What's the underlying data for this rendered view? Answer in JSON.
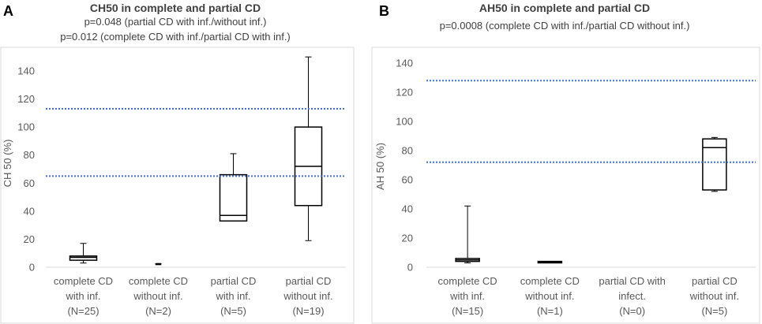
{
  "chart_data": [
    {
      "panel": "A",
      "type": "box",
      "title": "CH50 in complete and partial CD",
      "subtitles": [
        "p=0.048 (partial CD with inf./without inf.)",
        "p=0.012 (complete CD with inf./partial CD with inf.)"
      ],
      "ylabel": "CH 50 (%)",
      "ylim": [
        0,
        150
      ],
      "yticks": [
        0,
        20,
        40,
        60,
        80,
        100,
        120,
        140
      ],
      "categories": [
        [
          "complete CD",
          "with inf.",
          "(N=25)"
        ],
        [
          "complete CD",
          "without inf.",
          "(N=2)"
        ],
        [
          "partial CD",
          "with inf.",
          "(N=5)"
        ],
        [
          "partial CD",
          "without inf.",
          "(N=19)"
        ]
      ],
      "boxes": [
        {
          "min": 3,
          "q1": 5,
          "median": 7,
          "q3": 8,
          "max": 17
        },
        {
          "min": 2.5,
          "q1": 2.5,
          "median": 2.5,
          "q3": 2.5,
          "max": 2.5
        },
        {
          "min": 33,
          "q1": 33,
          "median": 37,
          "q3": 66,
          "max": 81
        },
        {
          "min": 19,
          "q1": 44,
          "median": 72,
          "q3": 100,
          "max": 150
        }
      ],
      "reference_lines": [
        113,
        65
      ],
      "reference_color": "#4472c4"
    },
    {
      "panel": "B",
      "type": "box",
      "title": "AH50 in complete and partial CD",
      "subtitles": [
        "p=0.0008 (complete CD with inf./partial CD without inf.)"
      ],
      "ylabel": "AH 50 (%)",
      "ylim": [
        0,
        150
      ],
      "yticks": [
        0,
        20,
        40,
        60,
        80,
        100,
        120,
        140
      ],
      "categories": [
        [
          "complete CD",
          "with inf.",
          "(N=15)"
        ],
        [
          "complete CD",
          "without inf.",
          "(N=1)"
        ],
        [
          "partial CD with",
          "infect.",
          "(N=0)"
        ],
        [
          "partial CD",
          "without inf.",
          "(N=5)"
        ]
      ],
      "boxes": [
        {
          "min": 3,
          "q1": 4,
          "median": 5,
          "q3": 6,
          "max": 42
        },
        {
          "min": 3,
          "q1": 3,
          "median": 3.5,
          "q3": 4,
          "max": 4
        },
        null,
        {
          "min": 52,
          "q1": 53,
          "median": 82,
          "q3": 88,
          "max": 89
        }
      ],
      "reference_lines": [
        128,
        72
      ],
      "reference_color": "#4472c4"
    }
  ]
}
